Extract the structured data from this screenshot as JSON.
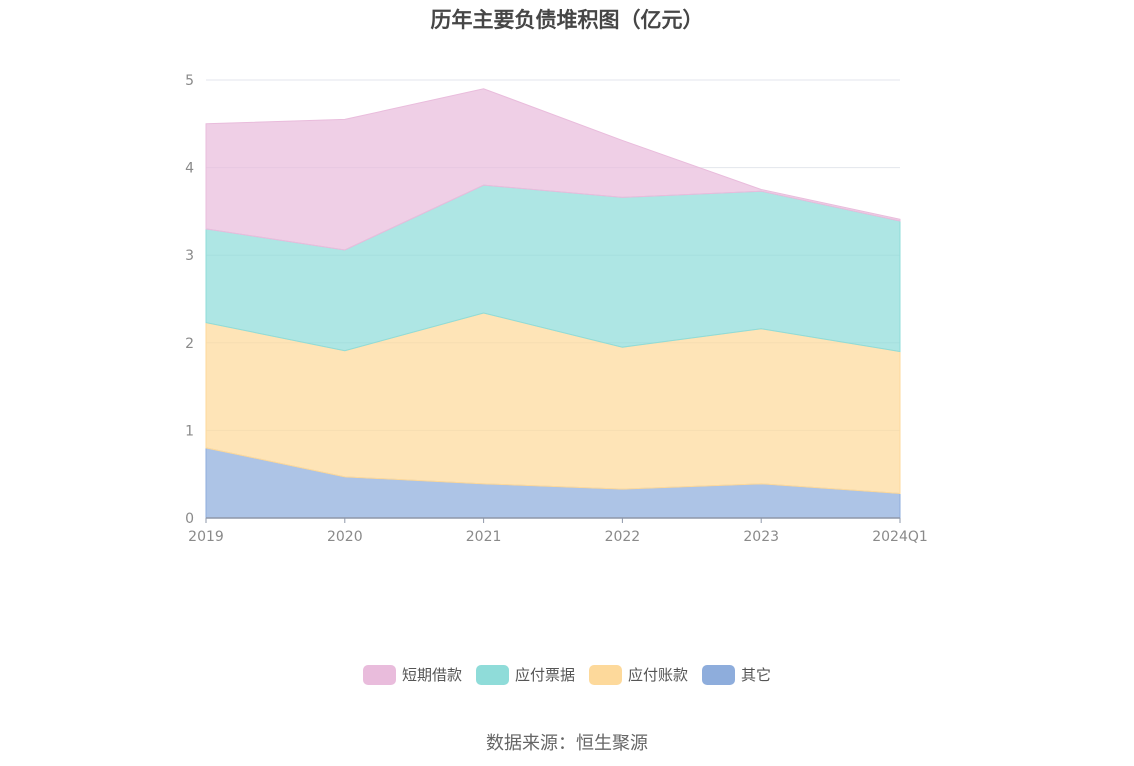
{
  "source_text": "数据来源：恒生聚源",
  "colors": {
    "短期借款": "#e9bcdc",
    "应付票据": "#8fdcd9",
    "应付账款": "#fdd99b",
    "其它": "#8eaddc"
  },
  "chart_data": {
    "type": "area",
    "stacked": true,
    "title": "历年主要负债堆积图（亿元）",
    "xlabel": "",
    "ylabel": "",
    "categories": [
      "2019",
      "2020",
      "2021",
      "2022",
      "2023",
      "2024Q1"
    ],
    "ylim": [
      0,
      5
    ],
    "yticks": [
      0,
      1,
      2,
      3,
      4,
      5
    ],
    "grid": true,
    "legend_position": "bottom",
    "series": [
      {
        "name": "其它",
        "values": [
          0.8,
          0.47,
          0.39,
          0.33,
          0.39,
          0.28
        ]
      },
      {
        "name": "应付账款",
        "values": [
          1.43,
          1.44,
          1.95,
          1.62,
          1.77,
          1.62
        ]
      },
      {
        "name": "应付票据",
        "values": [
          1.07,
          1.15,
          1.46,
          1.71,
          1.57,
          1.49
        ]
      },
      {
        "name": "短期借款",
        "values": [
          1.2,
          1.49,
          1.1,
          0.65,
          0.02,
          0.02
        ]
      }
    ]
  }
}
